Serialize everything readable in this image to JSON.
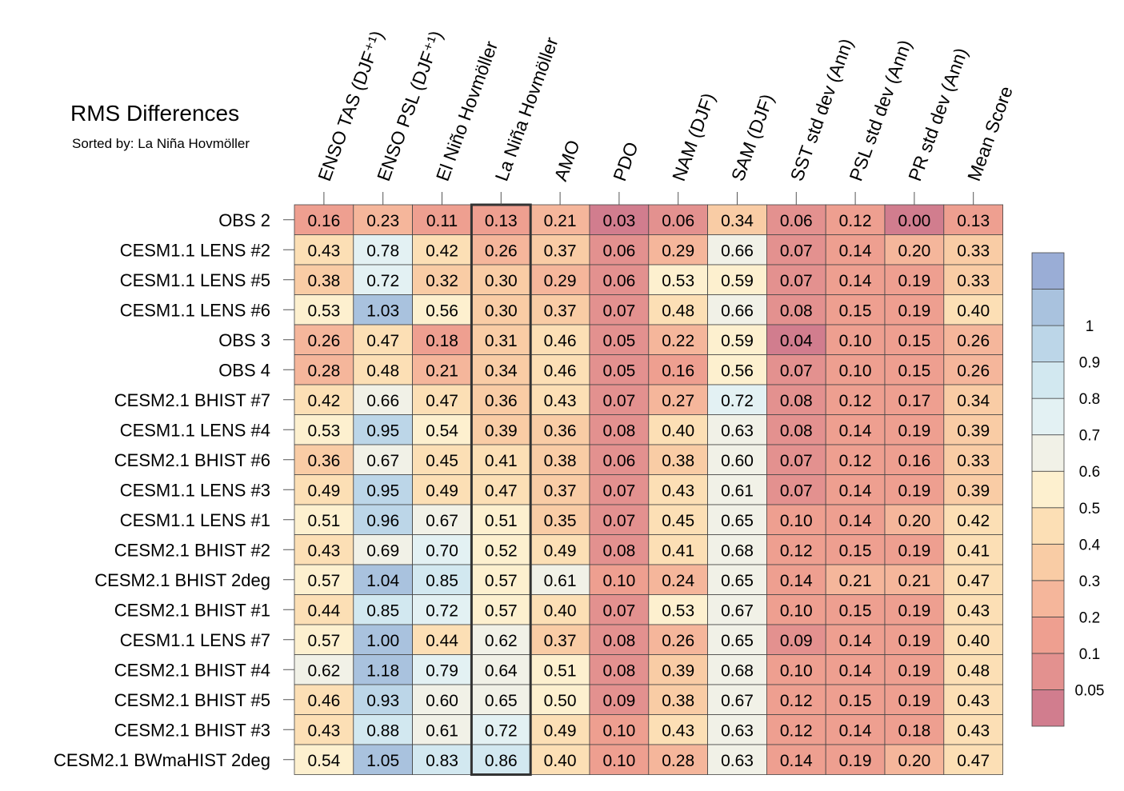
{
  "title": "RMS Differences",
  "subtitle": "Sorted by: La Niña Hovmöller",
  "colors": {
    "scale": [
      "#d17d8e",
      "#e3918f",
      "#ee9f90",
      "#f5b69b",
      "#f9cca5",
      "#fcdfb5",
      "#fdf0cf",
      "#f1f1e7",
      "#e3f1f3",
      "#d2e8f0",
      "#bcd6e8",
      "#a9c2de",
      "#9aadd6"
    ],
    "grid": "#444444",
    "highlight": "#333333"
  },
  "chart_data": {
    "type": "heatmap",
    "columns": [
      "ENSO TAS (DJF⁺¹)",
      "ENSO PSL (DJF⁺¹)",
      "El Niño Hovmöller",
      "La Niña Hovmöller",
      "AMO",
      "PDO",
      "NAM (DJF)",
      "SAM (DJF)",
      "SST std dev (Ann)",
      "PSL std dev (Ann)",
      "PR std dev (Ann)",
      "Mean Score"
    ],
    "rows": [
      "OBS 2",
      "CESM1.1 LENS #2",
      "CESM1.1 LENS #5",
      "CESM1.1 LENS #6",
      "OBS 3",
      "OBS 4",
      "CESM2.1 BHIST #7",
      "CESM1.1 LENS #4",
      "CESM2.1 BHIST #6",
      "CESM1.1 LENS #3",
      "CESM1.1 LENS #1",
      "CESM2.1 BHIST #2",
      "CESM2.1 BHIST 2deg",
      "CESM2.1 BHIST #1",
      "CESM1.1 LENS #7",
      "CESM2.1 BHIST #4",
      "CESM2.1 BHIST #5",
      "CESM2.1 BHIST #3",
      "CESM2.1 BWmaHIST 2deg"
    ],
    "values": [
      [
        "0.16",
        "0.23",
        "0.11",
        "0.13",
        "0.21",
        "0.03",
        "0.06",
        "0.34",
        "0.06",
        "0.12",
        "0.00",
        "0.13"
      ],
      [
        "0.43",
        "0.78",
        "0.42",
        "0.26",
        "0.37",
        "0.06",
        "0.29",
        "0.66",
        "0.07",
        "0.14",
        "0.20",
        "0.33"
      ],
      [
        "0.38",
        "0.72",
        "0.32",
        "0.30",
        "0.29",
        "0.06",
        "0.53",
        "0.59",
        "0.07",
        "0.14",
        "0.19",
        "0.33"
      ],
      [
        "0.53",
        "1.03",
        "0.56",
        "0.30",
        "0.37",
        "0.07",
        "0.48",
        "0.66",
        "0.08",
        "0.15",
        "0.19",
        "0.40"
      ],
      [
        "0.26",
        "0.47",
        "0.18",
        "0.31",
        "0.46",
        "0.05",
        "0.22",
        "0.59",
        "0.04",
        "0.10",
        "0.15",
        "0.26"
      ],
      [
        "0.28",
        "0.48",
        "0.21",
        "0.34",
        "0.46",
        "0.05",
        "0.16",
        "0.56",
        "0.07",
        "0.10",
        "0.15",
        "0.26"
      ],
      [
        "0.42",
        "0.66",
        "0.47",
        "0.36",
        "0.43",
        "0.07",
        "0.27",
        "0.72",
        "0.08",
        "0.12",
        "0.17",
        "0.34"
      ],
      [
        "0.53",
        "0.95",
        "0.54",
        "0.39",
        "0.36",
        "0.08",
        "0.40",
        "0.63",
        "0.08",
        "0.14",
        "0.19",
        "0.39"
      ],
      [
        "0.36",
        "0.67",
        "0.45",
        "0.41",
        "0.38",
        "0.06",
        "0.38",
        "0.60",
        "0.07",
        "0.12",
        "0.16",
        "0.33"
      ],
      [
        "0.49",
        "0.95",
        "0.49",
        "0.47",
        "0.37",
        "0.07",
        "0.43",
        "0.61",
        "0.07",
        "0.14",
        "0.19",
        "0.39"
      ],
      [
        "0.51",
        "0.96",
        "0.67",
        "0.51",
        "0.35",
        "0.07",
        "0.45",
        "0.65",
        "0.10",
        "0.14",
        "0.20",
        "0.42"
      ],
      [
        "0.43",
        "0.69",
        "0.70",
        "0.52",
        "0.49",
        "0.08",
        "0.41",
        "0.68",
        "0.12",
        "0.15",
        "0.19",
        "0.41"
      ],
      [
        "0.57",
        "1.04",
        "0.85",
        "0.57",
        "0.61",
        "0.10",
        "0.24",
        "0.65",
        "0.14",
        "0.21",
        "0.21",
        "0.47"
      ],
      [
        "0.44",
        "0.85",
        "0.72",
        "0.57",
        "0.40",
        "0.07",
        "0.53",
        "0.67",
        "0.10",
        "0.15",
        "0.19",
        "0.43"
      ],
      [
        "0.57",
        "1.00",
        "0.44",
        "0.62",
        "0.37",
        "0.08",
        "0.26",
        "0.65",
        "0.09",
        "0.14",
        "0.19",
        "0.40"
      ],
      [
        "0.62",
        "1.18",
        "0.79",
        "0.64",
        "0.51",
        "0.08",
        "0.39",
        "0.68",
        "0.10",
        "0.14",
        "0.19",
        "0.48"
      ],
      [
        "0.46",
        "0.93",
        "0.60",
        "0.65",
        "0.50",
        "0.09",
        "0.38",
        "0.67",
        "0.12",
        "0.15",
        "0.19",
        "0.43"
      ],
      [
        "0.43",
        "0.88",
        "0.61",
        "0.72",
        "0.49",
        "0.10",
        "0.43",
        "0.63",
        "0.12",
        "0.14",
        "0.18",
        "0.43"
      ],
      [
        "0.54",
        "1.05",
        "0.83",
        "0.86",
        "0.40",
        "0.10",
        "0.28",
        "0.63",
        "0.14",
        "0.19",
        "0.20",
        "0.47"
      ]
    ],
    "highlight_column": "La Niña Hovmöller",
    "colorbar": {
      "levels": [
        0.05,
        0.1,
        0.2,
        0.3,
        0.4,
        0.5,
        0.6,
        0.7,
        0.8,
        0.9,
        1
      ],
      "labels": [
        "0.05",
        "0.1",
        "0.2",
        "0.3",
        "0.4",
        "0.5",
        "0.6",
        "0.7",
        "0.8",
        "0.9",
        "1"
      ],
      "placement": "right"
    }
  }
}
